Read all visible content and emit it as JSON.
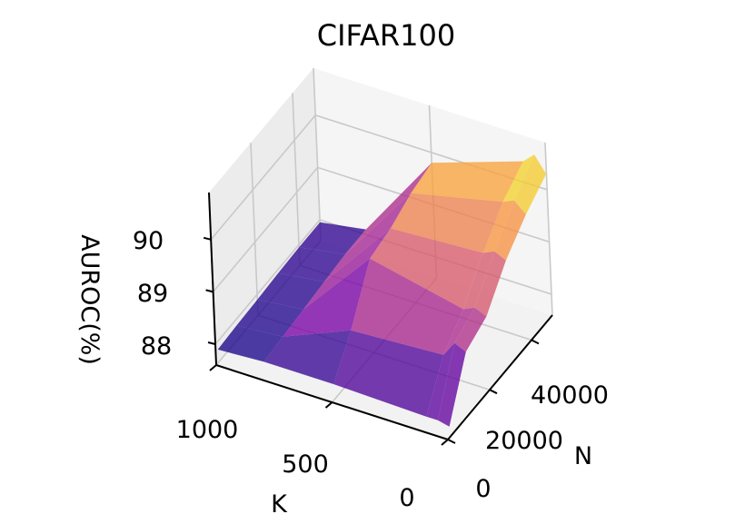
{
  "chart_data": {
    "type": "surface3d",
    "title": "CIFAR100",
    "xlabel": "K",
    "ylabel": "N",
    "zlabel": "AUROC(%)",
    "x_ticks": [
      "1000",
      "500",
      "0"
    ],
    "y_ticks": [
      "0",
      "20000",
      "40000"
    ],
    "z_ticks": [
      "88",
      "89",
      "90"
    ],
    "colormap": "plasma",
    "grid": true,
    "K": [
      1000,
      800,
      500,
      100,
      50,
      1
    ],
    "N": [
      1000,
      10000,
      20000,
      30000,
      40000,
      50000
    ],
    "AUROC": [
      [
        87.85,
        87.88,
        87.9,
        87.93,
        87.95,
        87.95
      ],
      [
        87.9,
        87.95,
        88.0,
        88.05,
        88.1,
        88.1
      ],
      [
        87.9,
        88.5,
        89.4,
        89.5,
        89.7,
        89.8
      ],
      [
        87.85,
        88.6,
        89.0,
        89.6,
        90.1,
        90.4
      ],
      [
        87.85,
        88.9,
        89.1,
        89.7,
        90.2,
        90.6
      ],
      [
        87.8,
        88.8,
        89.0,
        89.6,
        90.0,
        90.3
      ]
    ],
    "zlim": [
      87.6,
      90.9
    ]
  }
}
